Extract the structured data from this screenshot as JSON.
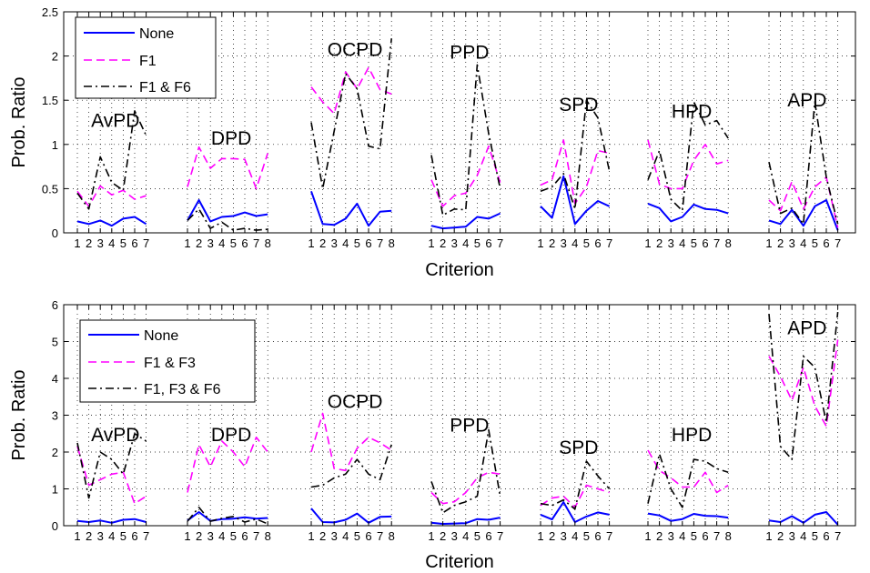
{
  "chart_data": [
    {
      "type": "line",
      "xlabel": "Criterion",
      "ylabel": "Prob. Ratio",
      "ylim": [
        0,
        2.5
      ],
      "yticks": [
        0,
        0.5,
        1,
        1.5,
        2,
        2.5
      ],
      "ytick_labels": [
        "0",
        "0.5",
        "1",
        "1.5",
        "2",
        "2.5"
      ],
      "grid": true,
      "legend_position": "top-left",
      "groups": [
        {
          "label": "AvPD",
          "criteria": [
            "1",
            "2",
            "3",
            "4",
            "5",
            "6",
            "7"
          ],
          "label_y": 1.2
        },
        {
          "label": "DPD",
          "criteria": [
            "1",
            "2",
            "3",
            "4",
            "5",
            "6",
            "7",
            "8"
          ],
          "label_y": 1.0
        },
        {
          "label": "OCPD",
          "criteria": [
            "1",
            "2",
            "3",
            "4",
            "5",
            "6",
            "7",
            "8"
          ],
          "label_y": 2.0
        },
        {
          "label": "PPD",
          "criteria": [
            "1",
            "2",
            "3",
            "4",
            "5",
            "6",
            "7"
          ],
          "label_y": 1.97
        },
        {
          "label": "SPD",
          "criteria": [
            "1",
            "2",
            "3",
            "4",
            "5",
            "6",
            "7"
          ],
          "label_y": 1.38
        },
        {
          "label": "HPD",
          "criteria": [
            "1",
            "2",
            "3",
            "4",
            "5",
            "6",
            "7",
            "8"
          ],
          "label_y": 1.3
        },
        {
          "label": "APD",
          "criteria": [
            "1",
            "2",
            "3",
            "4",
            "5",
            "6",
            "7"
          ],
          "label_y": 1.43
        }
      ],
      "series": [
        {
          "name": "None",
          "color": "#0000ff",
          "dash": "solid",
          "values": [
            [
              0.13,
              0.1,
              0.14,
              0.08,
              0.16,
              0.18,
              0.1
            ],
            [
              0.14,
              0.37,
              0.13,
              0.18,
              0.19,
              0.23,
              0.19,
              0.21
            ],
            [
              0.47,
              0.1,
              0.09,
              0.16,
              0.33,
              0.08,
              0.24,
              0.25
            ],
            [
              0.08,
              0.05,
              0.06,
              0.07,
              0.18,
              0.16,
              0.22
            ],
            [
              0.3,
              0.17,
              0.64,
              0.1,
              0.25,
              0.36,
              0.3
            ],
            [
              0.33,
              0.28,
              0.13,
              0.18,
              0.32,
              0.27,
              0.26,
              0.22
            ],
            [
              0.14,
              0.1,
              0.26,
              0.08,
              0.3,
              0.37,
              0.03
            ]
          ]
        },
        {
          "name": "F1",
          "color": "#ff00ff",
          "dash": "dashed",
          "values": [
            [
              0.47,
              0.3,
              0.53,
              0.43,
              0.48,
              0.38,
              0.42
            ],
            [
              0.52,
              0.97,
              0.73,
              0.84,
              0.84,
              0.83,
              0.5,
              0.9
            ],
            [
              1.65,
              1.48,
              1.35,
              1.82,
              1.63,
              1.87,
              1.62,
              1.57
            ],
            [
              0.6,
              0.3,
              0.42,
              0.45,
              0.65,
              0.98,
              0.57
            ],
            [
              0.54,
              0.6,
              1.05,
              0.33,
              0.52,
              0.93,
              0.9
            ],
            [
              1.05,
              0.55,
              0.5,
              0.5,
              0.82,
              1.0,
              0.78,
              0.82
            ],
            [
              0.37,
              0.25,
              0.58,
              0.27,
              0.52,
              0.63,
              0.06
            ]
          ]
        },
        {
          "name": "F1 & F6",
          "color": "#000000",
          "dash": "dashdot",
          "values": [
            [
              0.45,
              0.27,
              0.86,
              0.57,
              0.48,
              1.38,
              1.1
            ],
            [
              0.14,
              0.27,
              0.05,
              0.12,
              0.03,
              0.05,
              0.03,
              0.04
            ],
            [
              1.25,
              0.5,
              1.15,
              1.8,
              1.63,
              0.98,
              0.95,
              2.2
            ],
            [
              0.88,
              0.2,
              0.27,
              0.26,
              1.9,
              1.12,
              0.5
            ],
            [
              0.47,
              0.52,
              0.67,
              0.27,
              1.5,
              1.3,
              0.7
            ],
            [
              0.6,
              0.93,
              0.38,
              0.25,
              1.48,
              1.22,
              1.27,
              1.07
            ],
            [
              0.8,
              0.22,
              0.28,
              0.1,
              1.48,
              0.63,
              0.1
            ]
          ]
        }
      ]
    },
    {
      "type": "line",
      "xlabel": "Criterion",
      "ylabel": "Prob. Ratio",
      "ylim": [
        0,
        6
      ],
      "yticks": [
        0,
        1,
        2,
        3,
        4,
        5,
        6
      ],
      "ytick_labels": [
        "0",
        "1",
        "2",
        "3",
        "4",
        "5",
        "6"
      ],
      "grid": true,
      "legend_position": "top-left",
      "groups": [
        {
          "label": "AvPD",
          "criteria": [
            "1",
            "2",
            "3",
            "4",
            "5",
            "6",
            "7"
          ],
          "label_y": 2.3
        },
        {
          "label": "DPD",
          "criteria": [
            "1",
            "2",
            "3",
            "4",
            "5",
            "6",
            "7",
            "8"
          ],
          "label_y": 2.3
        },
        {
          "label": "OCPD",
          "criteria": [
            "1",
            "2",
            "3",
            "4",
            "5",
            "6",
            "7",
            "8"
          ],
          "label_y": 3.2
        },
        {
          "label": "PPD",
          "criteria": [
            "1",
            "2",
            "3",
            "4",
            "5",
            "6",
            "7"
          ],
          "label_y": 2.55
        },
        {
          "label": "SPD",
          "criteria": [
            "1",
            "2",
            "3",
            "4",
            "5",
            "6",
            "7"
          ],
          "label_y": 1.95
        },
        {
          "label": "HPD",
          "criteria": [
            "1",
            "2",
            "3",
            "4",
            "5",
            "6",
            "7",
            "8"
          ],
          "label_y": 2.3
        },
        {
          "label": "APD",
          "criteria": [
            "1",
            "2",
            "3",
            "4",
            "5",
            "6",
            "7"
          ],
          "label_y": 5.2
        }
      ],
      "series": [
        {
          "name": "None",
          "color": "#0000ff",
          "dash": "solid",
          "values": [
            [
              0.13,
              0.1,
              0.14,
              0.08,
              0.16,
              0.18,
              0.1
            ],
            [
              0.14,
              0.37,
              0.13,
              0.18,
              0.19,
              0.23,
              0.19,
              0.21
            ],
            [
              0.47,
              0.1,
              0.09,
              0.16,
              0.33,
              0.08,
              0.24,
              0.25
            ],
            [
              0.08,
              0.05,
              0.06,
              0.07,
              0.18,
              0.16,
              0.22
            ],
            [
              0.3,
              0.17,
              0.64,
              0.1,
              0.25,
              0.36,
              0.3
            ],
            [
              0.33,
              0.28,
              0.13,
              0.18,
              0.32,
              0.27,
              0.26,
              0.22
            ],
            [
              0.14,
              0.1,
              0.26,
              0.08,
              0.3,
              0.37,
              0.03
            ]
          ]
        },
        {
          "name": "F1 & F3",
          "color": "#ff00ff",
          "dash": "dashed",
          "values": [
            [
              2.15,
              1.1,
              1.25,
              1.4,
              1.45,
              0.6,
              0.8
            ],
            [
              0.9,
              2.2,
              1.6,
              2.3,
              2.0,
              1.6,
              2.4,
              2.0
            ],
            [
              2.0,
              3.05,
              1.55,
              1.5,
              2.1,
              2.4,
              2.25,
              2.05
            ],
            [
              0.9,
              0.6,
              0.65,
              0.9,
              1.3,
              1.45,
              1.4
            ],
            [
              0.55,
              0.75,
              0.8,
              0.5,
              1.1,
              1.0,
              0.9
            ],
            [
              2.05,
              1.5,
              1.3,
              1.05,
              1.05,
              1.45,
              0.9,
              1.1
            ],
            [
              4.6,
              4.05,
              3.4,
              4.3,
              3.25,
              2.7,
              5.05
            ]
          ]
        },
        {
          "name": "F1, F3 & F6",
          "color": "#000000",
          "dash": "dashdot",
          "values": [
            [
              2.25,
              0.75,
              2.0,
              1.8,
              1.4,
              2.5,
              2.3
            ],
            [
              0.12,
              0.5,
              0.12,
              0.2,
              0.25,
              0.1,
              0.18,
              0.05
            ],
            [
              1.05,
              1.1,
              1.3,
              1.4,
              1.8,
              1.4,
              1.25,
              2.2
            ],
            [
              1.2,
              0.35,
              0.55,
              0.65,
              0.8,
              2.6,
              0.8
            ],
            [
              0.6,
              0.55,
              0.7,
              0.45,
              1.75,
              1.35,
              1.0
            ],
            [
              0.6,
              1.95,
              1.0,
              0.5,
              1.8,
              1.75,
              1.55,
              1.45
            ],
            [
              5.75,
              2.15,
              1.8,
              4.6,
              4.3,
              2.8,
              5.8
            ]
          ]
        }
      ]
    }
  ]
}
